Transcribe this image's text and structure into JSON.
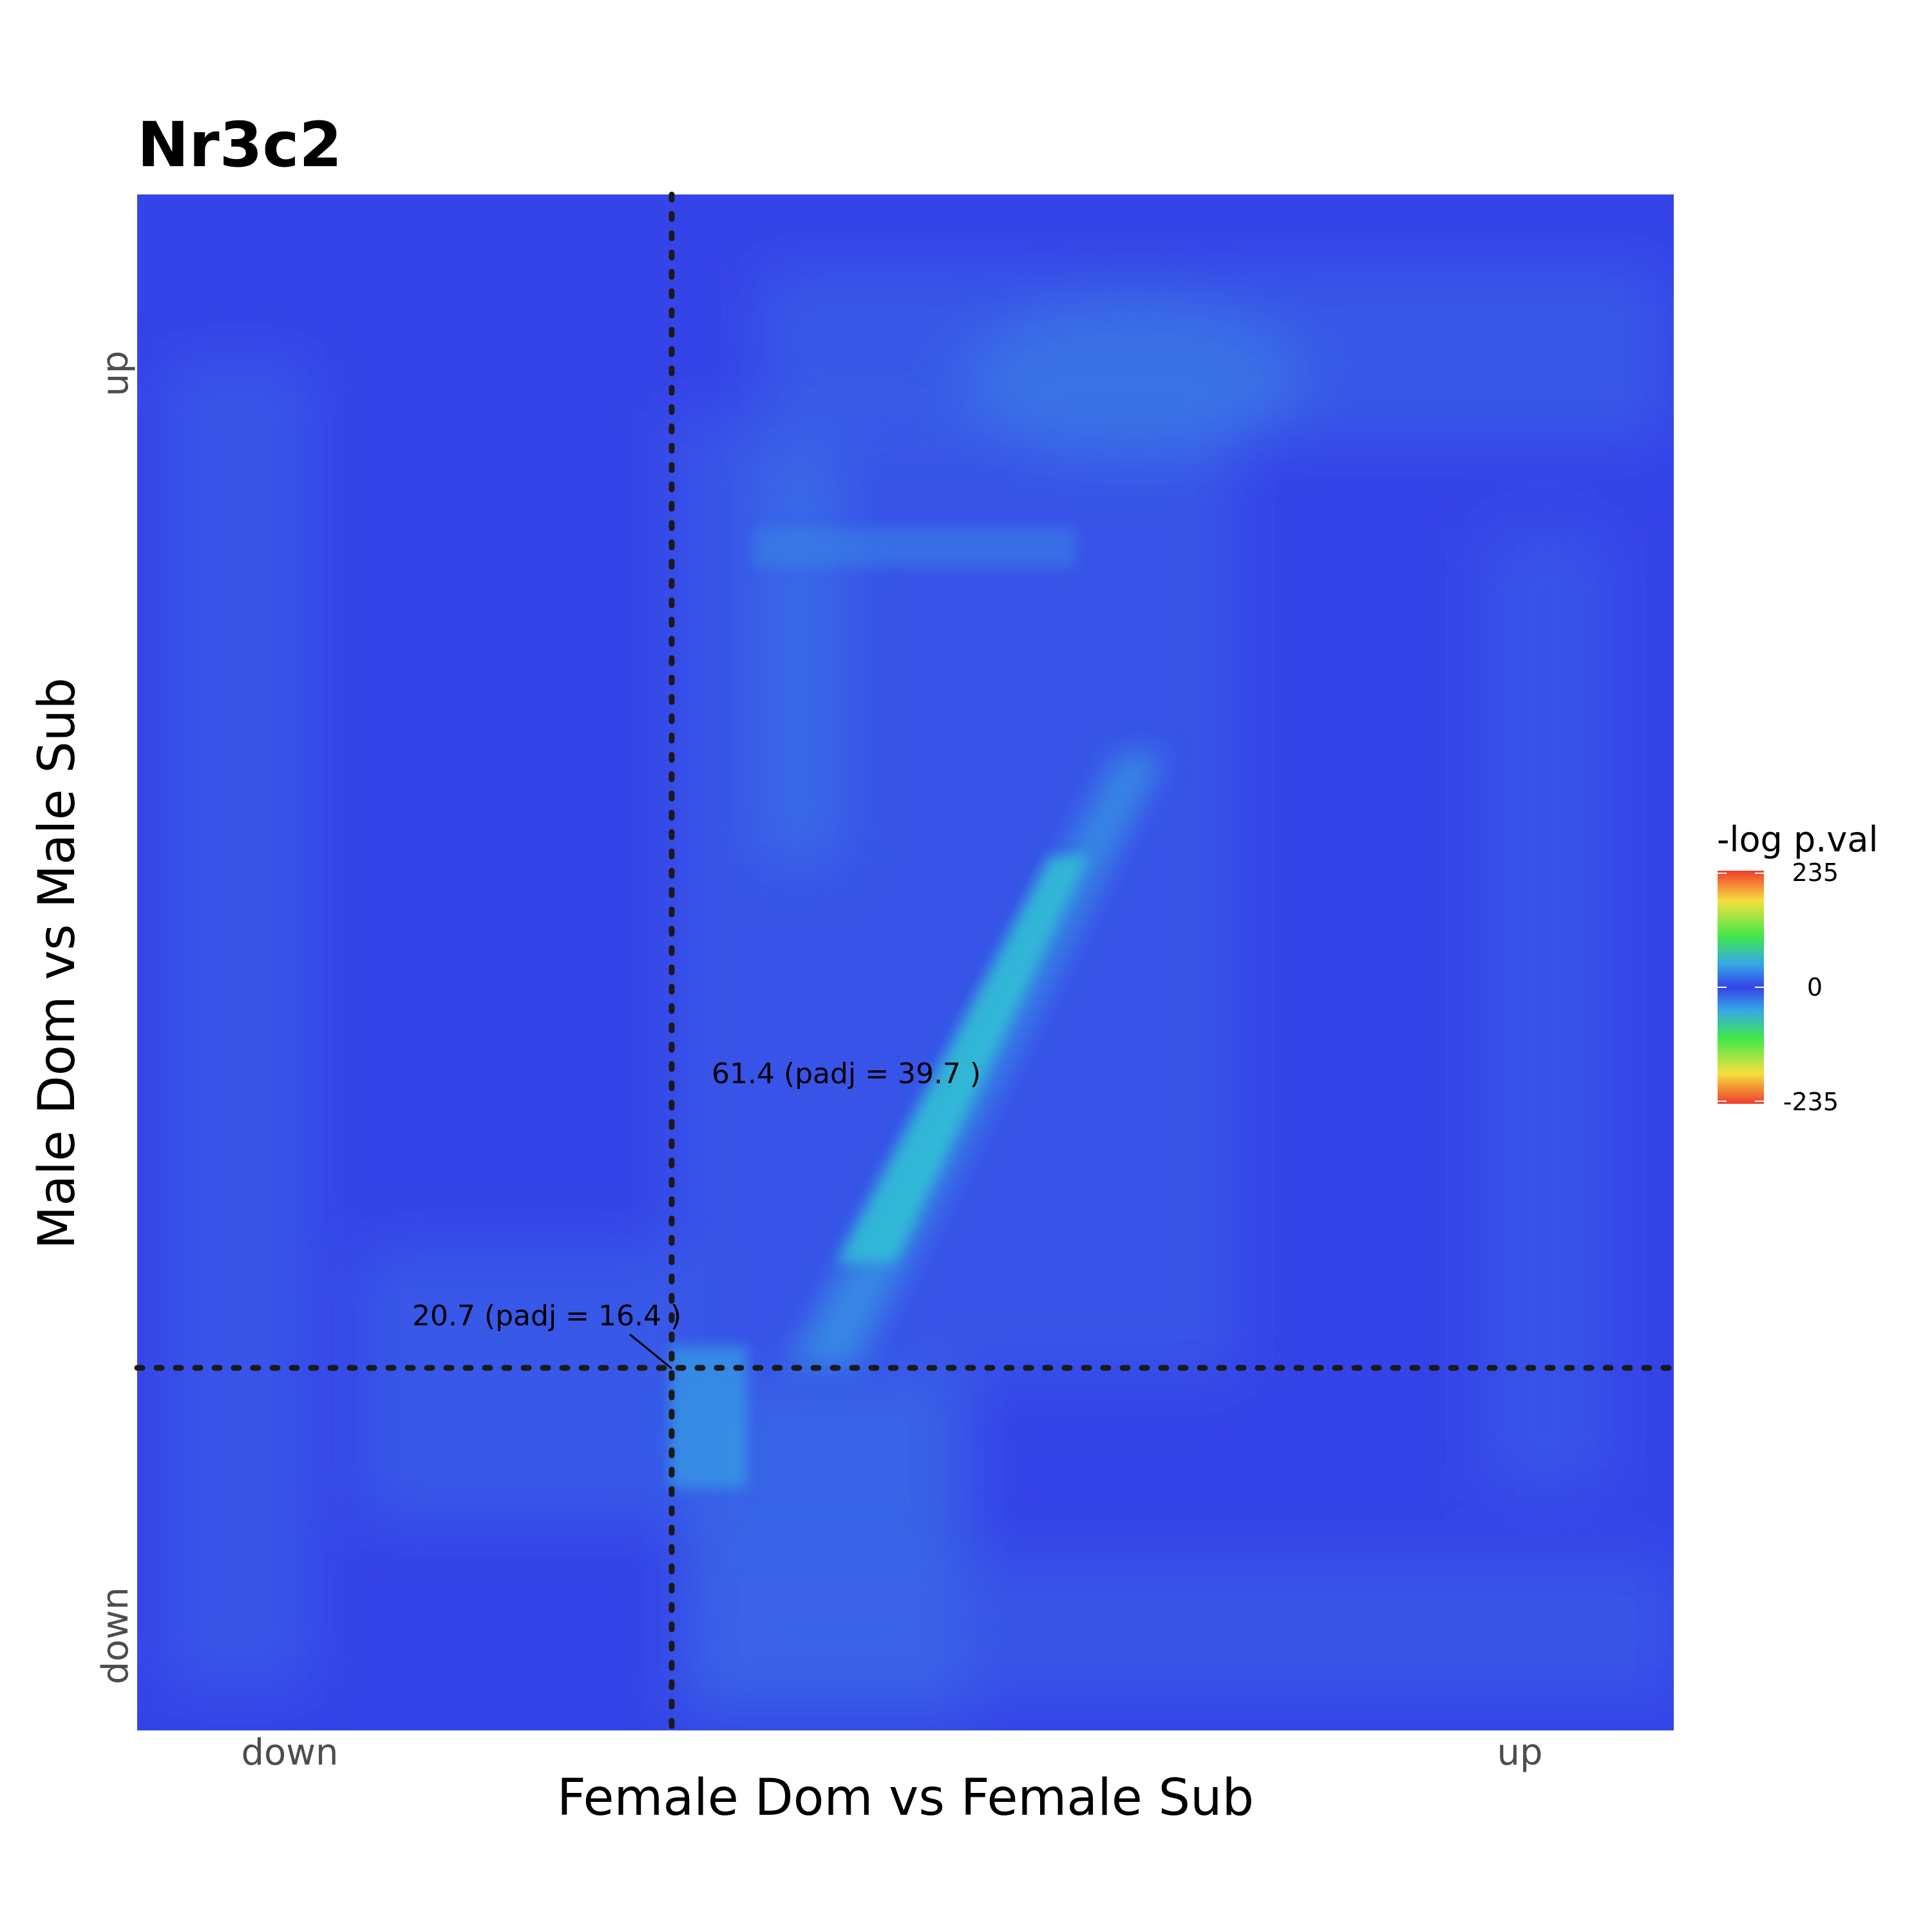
{
  "chart_data": {
    "type": "heatmap",
    "title": "Nr3c2",
    "xlabel": "Female Dom vs Female Sub",
    "ylabel": "Male Dom vs Male Sub",
    "x_ticks": [
      "down",
      "up"
    ],
    "y_ticks": [
      "down",
      "up"
    ],
    "legend": {
      "title": "-log p.val",
      "ticks": [
        "235",
        "0",
        "-235"
      ],
      "range": [
        -235,
        235
      ],
      "placement": "right",
      "colors": [
        "#f03c2e",
        "#f6e03c",
        "#41e84a",
        "#35a8e6",
        "#3544e8"
      ]
    },
    "fill_color": "#3544e8",
    "threshold_lines": {
      "style": "dotted",
      "color": "#1a1a1a"
    },
    "annotations": [
      {
        "text": "61.4 (padj = 39.7 )"
      },
      {
        "text": "20.7 (padj = 16.4 )"
      }
    ]
  }
}
